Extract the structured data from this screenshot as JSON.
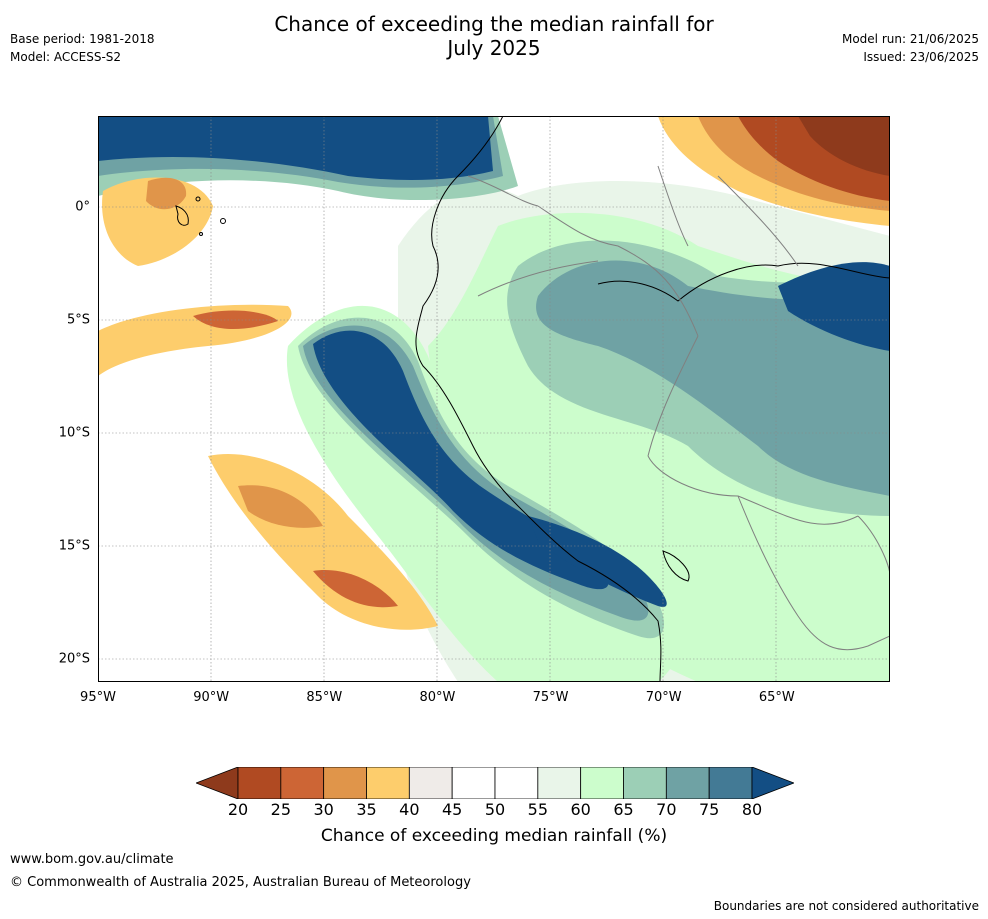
{
  "title": {
    "line1": "Chance of exceeding the median rainfall for",
    "line2": "July 2025"
  },
  "meta": {
    "base_period": "Base period: 1981-2018",
    "model": "Model: ACCESS-S2",
    "model_run": "Model run: 21/06/2025",
    "issued": "Issued: 23/06/2025"
  },
  "map": {
    "lat_labels": [
      "0°",
      "5°S",
      "10°S",
      "15°S",
      "20°S"
    ],
    "lat_values": [
      0,
      -5,
      -10,
      -15,
      -20
    ],
    "lon_labels": [
      "95°W",
      "90°W",
      "85°W",
      "80°W",
      "75°W",
      "70°W",
      "65°W"
    ],
    "lon_values": [
      -95,
      -90,
      -85,
      -80,
      -75,
      -70,
      -65
    ],
    "extent": {
      "lon_min": -95,
      "lon_max": -60,
      "lat_min": -21,
      "lat_max": 4
    }
  },
  "colorbar": {
    "ticks": [
      "20",
      "25",
      "30",
      "35",
      "40",
      "45",
      "50",
      "55",
      "60",
      "65",
      "70",
      "75",
      "80"
    ],
    "colors": [
      "#8e3a1c",
      "#b04a22",
      "#cd6535",
      "#e0954a",
      "#fdcd6c",
      "#efebe8",
      "#ffffff",
      "#ffffff",
      "#e9f5e9",
      "#ccfdcc",
      "#9ccfb6",
      "#6fa2a4",
      "#437a95",
      "#134e84"
    ],
    "label": "Chance of exceeding median rainfall (%)"
  },
  "footer": {
    "url": "www.bom.gov.au/climate",
    "copyright": "© Commonwealth of Australia 2025, Australian Bureau of Meteorology",
    "disclaimer": "Boundaries are not considered authoritative"
  }
}
